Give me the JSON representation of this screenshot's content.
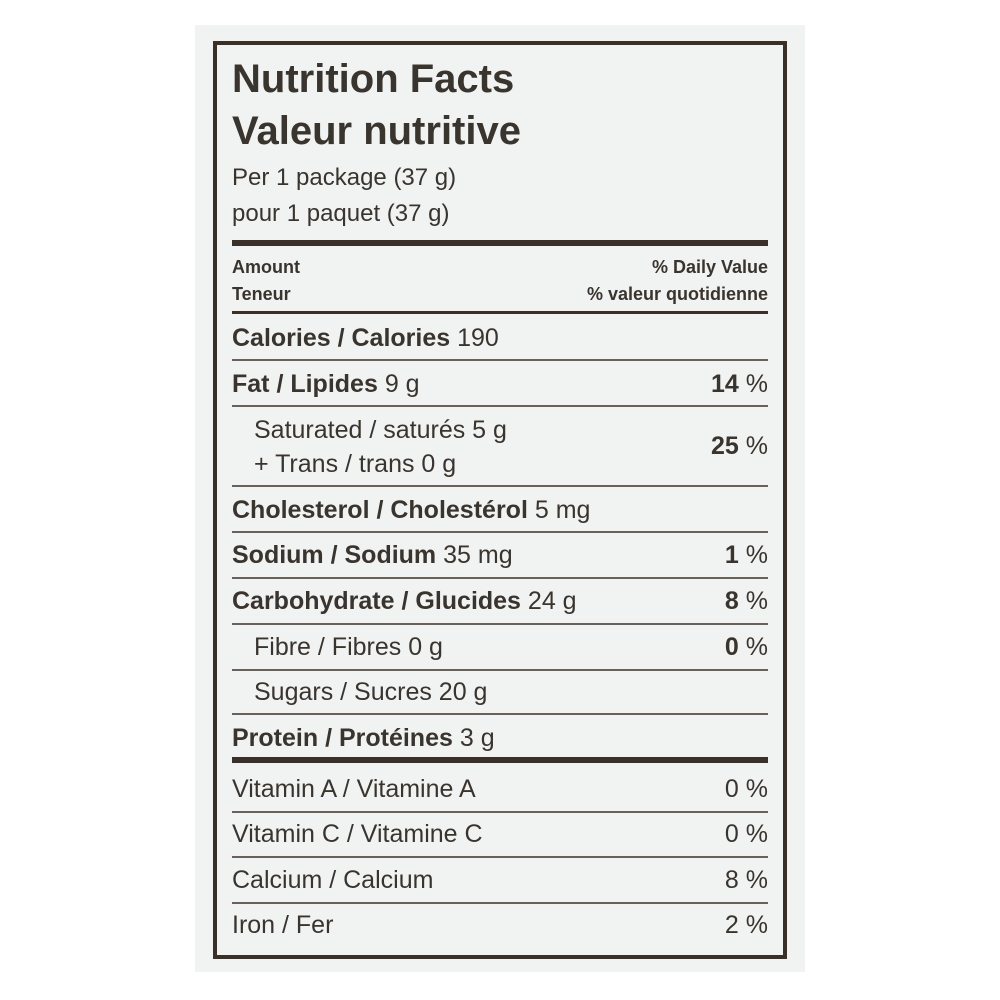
{
  "title_en": "Nutrition Facts",
  "title_fr": "Valeur nutritive",
  "serving_en": "Per 1 package (37 g)",
  "serving_fr": "pour 1 paquet (37 g)",
  "header": {
    "amount_en": "Amount",
    "amount_fr": "Teneur",
    "dv_en": "% Daily Value",
    "dv_fr": "% valeur quotidienne"
  },
  "nutrients": [
    {
      "label": "Calories / Calories",
      "amount": "190",
      "dv": ""
    },
    {
      "label": "Fat / Lipides",
      "amount": "9 g",
      "dv": "14",
      "unit": "%"
    },
    {
      "label": "Saturated / saturés 5 g",
      "label2": "+ Trans / trans 0 g",
      "dv": "25",
      "unit": "%"
    },
    {
      "label": "Cholesterol / Cholestérol",
      "amount": "5 mg"
    },
    {
      "label": "Sodium / Sodium",
      "amount": "35 mg",
      "dv": "1",
      "unit": "%"
    },
    {
      "label": "Carbohydrate / Glucides",
      "amount": "24 g",
      "dv": "8",
      "unit": "%"
    },
    {
      "label": "Fibre / Fibres 0 g",
      "dv": "0",
      "unit": "%"
    },
    {
      "label": "Sugars / Sucres 20 g"
    },
    {
      "label": "Protein / Protéines",
      "amount": "3 g"
    }
  ],
  "vitamins": [
    {
      "label": "Vitamin A / Vitamine A",
      "dv": "0 %"
    },
    {
      "label": "Vitamin C / Vitamine C",
      "dv": "0 %"
    },
    {
      "label": "Calcium / Calcium",
      "dv": "8 %"
    },
    {
      "label": "Iron / Fer",
      "dv": "2 %"
    }
  ]
}
